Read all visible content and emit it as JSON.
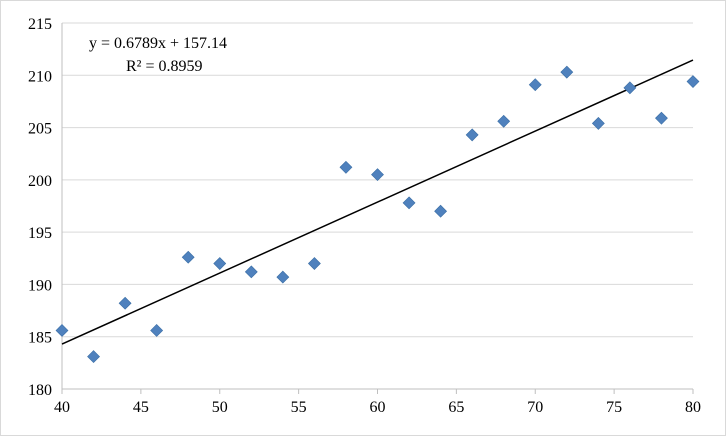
{
  "chart_data": {
    "type": "scatter",
    "title": "",
    "xlabel": "",
    "ylabel": "",
    "xlim": [
      40,
      80
    ],
    "ylim": [
      180,
      215
    ],
    "x_ticks": [
      40,
      45,
      50,
      55,
      60,
      65,
      70,
      75,
      80
    ],
    "y_ticks": [
      180,
      185,
      190,
      195,
      200,
      205,
      210,
      215
    ],
    "grid": "horizontal",
    "legend": "none",
    "marker": "diamond",
    "marker_color": "#4f81bd",
    "trendline_color": "#000000",
    "series": [
      {
        "x": [
          40,
          42,
          44,
          46,
          48,
          50,
          52,
          54,
          56,
          58,
          60,
          62,
          64,
          66,
          68,
          70,
          72,
          74,
          76,
          78,
          80
        ],
        "y": [
          185.6,
          183.1,
          188.2,
          185.6,
          192.6,
          192.0,
          191.2,
          190.7,
          192.0,
          201.2,
          200.5,
          197.8,
          197.0,
          204.3,
          205.6,
          209.1,
          210.3,
          205.4,
          208.8,
          205.9,
          209.4
        ]
      }
    ],
    "trendline": {
      "slope": 0.6789,
      "intercept": 157.14,
      "equation": "y = 0.6789x + 157.14",
      "r_squared": "R² = 0.8959"
    }
  }
}
